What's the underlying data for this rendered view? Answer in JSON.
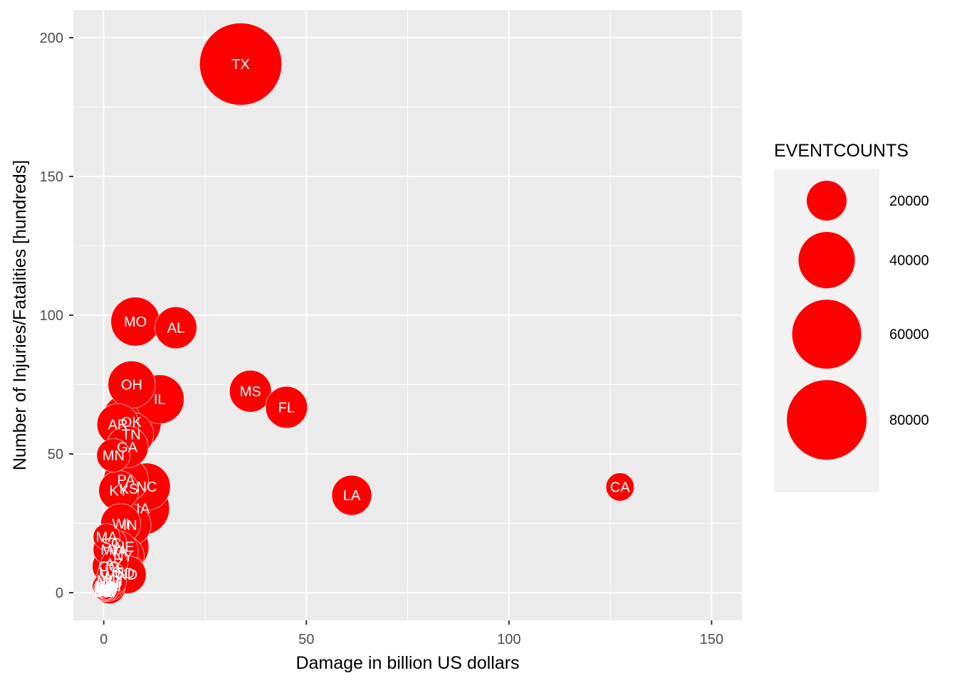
{
  "chart_data": {
    "type": "scatter",
    "title": "",
    "xlabel": "Damage in billion US dollars",
    "ylabel": "Number of Injuries/Fatalities [hundreds]",
    "xlim": [
      -7.5,
      157.5
    ],
    "ylim": [
      -10,
      210
    ],
    "x_ticks": [
      0,
      50,
      100,
      150
    ],
    "y_ticks": [
      0,
      50,
      100,
      150,
      200
    ],
    "grid": true,
    "legend": {
      "title": "EVENTCOUNTS",
      "position": "right",
      "items": [
        {
          "label": "20000",
          "value": 20000
        },
        {
          "label": "40000",
          "value": 40000
        },
        {
          "label": "60000",
          "value": 60000
        },
        {
          "label": "80000",
          "value": 80000
        }
      ]
    },
    "colors": {
      "point": "#ff0000",
      "panel": "#ebebeb",
      "grid": "#ffffff",
      "legend_key": "#f2f2f2"
    },
    "points": [
      {
        "label": "TX",
        "x": 33.8,
        "y": 190.5,
        "size": 85000
      },
      {
        "label": "MO",
        "x": 7.8,
        "y": 97.7,
        "size": 30000
      },
      {
        "label": "AL",
        "x": 17.8,
        "y": 95.5,
        "size": 22000
      },
      {
        "label": "OH",
        "x": 6.9,
        "y": 75.0,
        "size": 28000
      },
      {
        "label": "IL",
        "x": 13.8,
        "y": 69.7,
        "size": 30000
      },
      {
        "label": "MS",
        "x": 36.2,
        "y": 72.6,
        "size": 22000
      },
      {
        "label": "FL",
        "x": 45.1,
        "y": 66.8,
        "size": 22000
      },
      {
        "label": "AR",
        "x": 3.5,
        "y": 60.6,
        "size": 22000
      },
      {
        "label": "OK",
        "x": 6.8,
        "y": 61.5,
        "size": 45000
      },
      {
        "label": "TN",
        "x": 6.8,
        "y": 57.0,
        "size": 25000
      },
      {
        "label": "GA",
        "x": 5.8,
        "y": 52.5,
        "size": 22000
      },
      {
        "label": "MN",
        "x": 2.4,
        "y": 49.5,
        "size": 14000
      },
      {
        "label": "LA",
        "x": 61.2,
        "y": 35.1,
        "size": 20000
      },
      {
        "label": "CA",
        "x": 127.4,
        "y": 38.1,
        "size": 10000
      },
      {
        "label": "PA",
        "x": 5.5,
        "y": 40.7,
        "size": 25000
      },
      {
        "label": "NC",
        "x": 10.6,
        "y": 38.2,
        "size": 28000
      },
      {
        "label": "KS",
        "x": 6.2,
        "y": 37.5,
        "size": 40000
      },
      {
        "label": "KY",
        "x": 3.7,
        "y": 36.8,
        "size": 20000
      },
      {
        "label": "IA",
        "x": 9.7,
        "y": 30.4,
        "size": 35000
      },
      {
        "label": "WI",
        "x": 4.2,
        "y": 24.9,
        "size": 20000
      },
      {
        "label": "IN",
        "x": 6.5,
        "y": 24.4,
        "size": 22000
      },
      {
        "label": "MA",
        "x": 0.7,
        "y": 20.1,
        "size": 9000
      },
      {
        "label": "SC",
        "x": 1.9,
        "y": 17.8,
        "size": 12000
      },
      {
        "label": "MI",
        "x": 1.2,
        "y": 15.5,
        "size": 12000
      },
      {
        "label": "NE",
        "x": 5.1,
        "y": 16.5,
        "size": 30000
      },
      {
        "label": "VA",
        "x": 3.6,
        "y": 15.0,
        "size": 20000
      },
      {
        "label": "NY",
        "x": 4.8,
        "y": 13.2,
        "size": 22000
      },
      {
        "label": "CO",
        "x": 1.3,
        "y": 9.5,
        "size": 14000
      },
      {
        "label": "AZ",
        "x": 2.6,
        "y": 10.5,
        "size": 9000
      },
      {
        "label": "SD",
        "x": 5.2,
        "y": 7.0,
        "size": 22000
      },
      {
        "label": "ND",
        "x": 5.8,
        "y": 6.5,
        "size": 18000
      },
      {
        "label": "UT",
        "x": 1.2,
        "y": 7.3,
        "size": 6000
      },
      {
        "label": "WV",
        "x": 2.1,
        "y": 6.1,
        "size": 9000
      },
      {
        "label": "MD",
        "x": 1.0,
        "y": 4.5,
        "size": 8000
      },
      {
        "label": "NJ",
        "x": 2.5,
        "y": 3.8,
        "size": 8000
      },
      {
        "label": "WA",
        "x": 0.8,
        "y": 2.5,
        "size": 8000
      },
      {
        "label": "NM",
        "x": 1.6,
        "y": 2.3,
        "size": 10000
      },
      {
        "label": "ME",
        "x": 0.3,
        "y": 2.2,
        "size": 8000
      },
      {
        "label": "OR",
        "x": 0.5,
        "y": 1.6,
        "size": 6000
      },
      {
        "label": "MT",
        "x": 1.4,
        "y": 1.5,
        "size": 12000
      },
      {
        "label": "WY",
        "x": 0.6,
        "y": 1.2,
        "size": 8000
      },
      {
        "label": "CT",
        "x": 0.4,
        "y": 1.0,
        "size": 4000
      },
      {
        "label": "NH",
        "x": 0.2,
        "y": 0.8,
        "size": 4000
      },
      {
        "label": "VT",
        "x": 0.2,
        "y": 0.7,
        "size": 5000
      },
      {
        "label": "ID",
        "x": 0.4,
        "y": 0.9,
        "size": 6000
      },
      {
        "label": "NV",
        "x": 1.2,
        "y": 0.6,
        "size": 3000
      },
      {
        "label": "DE",
        "x": 0.1,
        "y": 0.4,
        "size": 2000
      },
      {
        "label": "RI",
        "x": 0.1,
        "y": 0.3,
        "size": 1000
      },
      {
        "label": "HI",
        "x": 0.3,
        "y": 0.5,
        "size": 2000
      },
      {
        "label": "AK",
        "x": 0.5,
        "y": 0.3,
        "size": 3000
      },
      {
        "label": "DC",
        "x": 0.1,
        "y": 0.2,
        "size": 800
      }
    ]
  }
}
